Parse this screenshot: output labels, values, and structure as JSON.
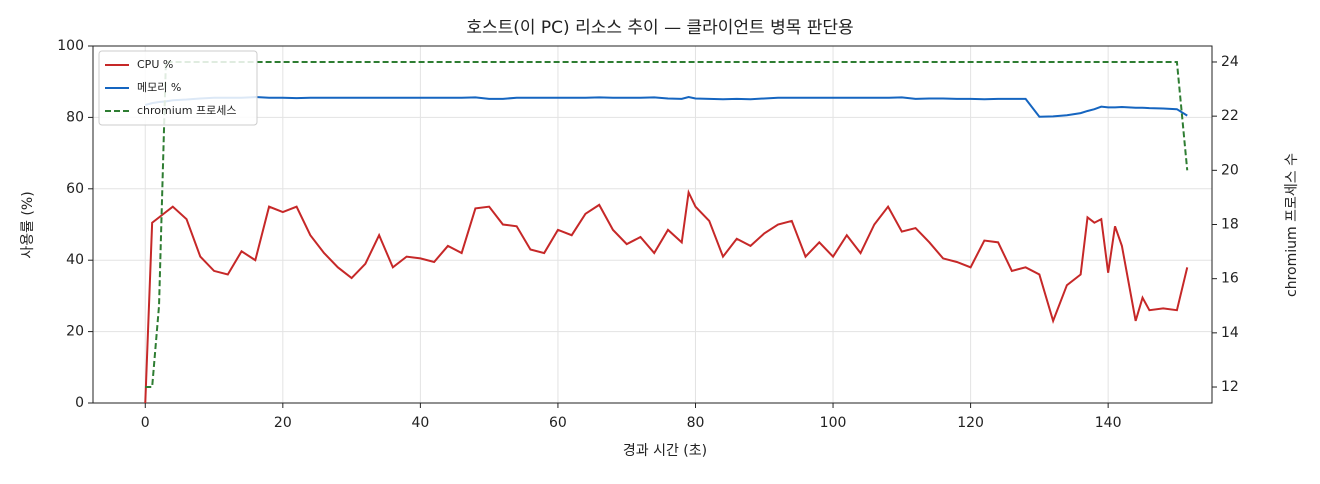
{
  "chart_data": {
    "type": "line",
    "title": "호스트(이 PC) 리소스 추이 — 클라이언트 병목 판단용",
    "xlabel": "경과 시간 (초)",
    "ylabel": "사용률 (%)",
    "y2label": "chromium 프로세스 수",
    "x": [
      0,
      1,
      2,
      3,
      4,
      6,
      8,
      10,
      12,
      14,
      16,
      18,
      20,
      22,
      24,
      26,
      28,
      30,
      32,
      34,
      36,
      38,
      40,
      42,
      44,
      46,
      48,
      50,
      52,
      54,
      56,
      58,
      60,
      62,
      64,
      66,
      68,
      70,
      72,
      74,
      76,
      78,
      79,
      80,
      82,
      84,
      86,
      88,
      90,
      92,
      94,
      96,
      98,
      100,
      102,
      104,
      106,
      108,
      110,
      112,
      114,
      116,
      118,
      120,
      122,
      124,
      126,
      128,
      130,
      132,
      134,
      136,
      137,
      138,
      139,
      140,
      141,
      142,
      144,
      145,
      146,
      148,
      150,
      151.5
    ],
    "series": [
      {
        "name": "CPU %",
        "color": "#c62828",
        "dash": false,
        "values": [
          0,
          50.5,
          52,
          53.5,
          55,
          51.5,
          41,
          37,
          36,
          42.5,
          40,
          55,
          53.5,
          55,
          47,
          42,
          38,
          35,
          39,
          47,
          38,
          41,
          40.5,
          39.5,
          44,
          42,
          54.5,
          55,
          50,
          49.5,
          43,
          42,
          48.5,
          47,
          53,
          55.5,
          48.5,
          44.5,
          46.5,
          42,
          48.5,
          45,
          59,
          55,
          51,
          41,
          46,
          44,
          47.5,
          50,
          51,
          41,
          45,
          41,
          47,
          42,
          50,
          55,
          48,
          49,
          45,
          40.5,
          39.5,
          38,
          45.5,
          45,
          37,
          38,
          36,
          23,
          33,
          36,
          52,
          50.5,
          51.5,
          36.5,
          49.5,
          44,
          23,
          29.5,
          26,
          26.5,
          26,
          38
        ]
      },
      {
        "name": "메모리 %",
        "color": "#1565c0",
        "dash": false,
        "values": [
          83.5,
          84,
          84.3,
          84.5,
          84.8,
          85,
          85.3,
          85.5,
          85.5,
          85.5,
          85.7,
          85.5,
          85.5,
          85.4,
          85.5,
          85.5,
          85.5,
          85.5,
          85.5,
          85.5,
          85.5,
          85.5,
          85.5,
          85.5,
          85.5,
          85.5,
          85.6,
          85.2,
          85.2,
          85.5,
          85.5,
          85.5,
          85.5,
          85.5,
          85.5,
          85.6,
          85.5,
          85.5,
          85.5,
          85.6,
          85.3,
          85.2,
          85.7,
          85.3,
          85.2,
          85.1,
          85.2,
          85.1,
          85.3,
          85.5,
          85.5,
          85.5,
          85.5,
          85.5,
          85.5,
          85.5,
          85.5,
          85.5,
          85.6,
          85.2,
          85.3,
          85.3,
          85.2,
          85.2,
          85.1,
          85.2,
          85.2,
          85.2,
          80.2,
          80.3,
          80.6,
          81.2,
          81.8,
          82.3,
          83,
          82.8,
          82.8,
          82.9,
          82.7,
          82.7,
          82.6,
          82.5,
          82.3,
          80.5
        ]
      },
      {
        "name": "chromium 프로세스",
        "color": "#2e7d32",
        "dash": true,
        "axis": "y2",
        "values": [
          12,
          12,
          15,
          24,
          24,
          24,
          24,
          24,
          24,
          24,
          24,
          24,
          24,
          24,
          24,
          24,
          24,
          24,
          24,
          24,
          24,
          24,
          24,
          24,
          24,
          24,
          24,
          24,
          24,
          24,
          24,
          24,
          24,
          24,
          24,
          24,
          24,
          24,
          24,
          24,
          24,
          24,
          24,
          24,
          24,
          24,
          24,
          24,
          24,
          24,
          24,
          24,
          24,
          24,
          24,
          24,
          24,
          24,
          24,
          24,
          24,
          24,
          24,
          24,
          24,
          24,
          24,
          24,
          24,
          24,
          24,
          24,
          24,
          24,
          24,
          24,
          24,
          24,
          24,
          24,
          24,
          24,
          24,
          20
        ]
      }
    ],
    "xlim": [
      -7.6,
      155.1
    ],
    "xticks": [
      0,
      20,
      40,
      60,
      80,
      100,
      120,
      140
    ],
    "ylim": [
      0,
      100
    ],
    "yticks": [
      0,
      20,
      40,
      60,
      80,
      100
    ],
    "y2lim": [
      11.41,
      24.59
    ],
    "y2ticks": [
      12,
      14,
      16,
      18,
      20,
      22,
      24
    ],
    "grid": true,
    "legend": "upper-left"
  }
}
